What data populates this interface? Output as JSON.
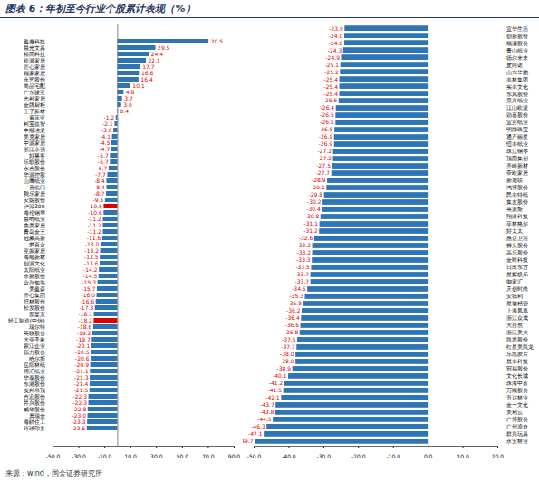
{
  "title": "图表 6：年初至今行业个股累计表现（%）",
  "source": "来源：wind，国金证券研究所",
  "chart_data": [
    {
      "type": "bar",
      "orientation": "horizontal",
      "data_labels": true,
      "grid": false,
      "categories": [
        "盈趣科技",
        "晨光文具",
        "裕同科技",
        "欧派家居",
        "匠心家居",
        "顾家家居",
        "永艺股份",
        "尚品宅配",
        "广东骏亚",
        "志邦家居",
        "金牌厨柜",
        "王子新材",
        "索菲亚",
        "邦宝益智",
        "中顺洁柔",
        "美克家居",
        "中源家居",
        "浙江永强",
        "好莱客",
        "乐歌股份",
        "永吉股份",
        "华源控股",
        "山鹰纸业",
        "喜临门",
        "我乐家居",
        "安妮股份",
        "沪深300",
        "海伦钢琴",
        "晨鸣纸业",
        "曲美家居",
        "青岛金王",
        "冠豪高新",
        "梦百合",
        "亚振家居",
        "海顺新材",
        "创源文化",
        "太阳纸业",
        "永新股份",
        "合兴包装",
        "美盈森",
        "齐心集团",
        "恒林股份",
        "松发股份",
        "爱婴室",
        "轻工制造(中信)",
        "瑞尔特",
        "英联股份",
        "大亚圣象",
        "紫江企业",
        "德力股份",
        "哈尔斯",
        "岳阳林纸",
        "博汇纸业",
        "华泰股份",
        "东港股份",
        "友邦吊顶",
        "吉宏股份",
        "昇兴股份",
        "威华股份",
        "奥瑞金",
        "海鸥住工",
        "环球印务"
      ],
      "values": [
        70.5,
        29.5,
        24.4,
        22.1,
        17.7,
        16.8,
        16.4,
        10.1,
        4.8,
        3.7,
        3.0,
        0.4,
        -1.2,
        -2.1,
        -3.0,
        -4.1,
        -4.5,
        -4.7,
        -5.7,
        -5.7,
        -6.7,
        -7.7,
        -8.4,
        -8.4,
        -8.7,
        -9.5,
        -10.5,
        -10.6,
        -11.2,
        -11.2,
        -11.2,
        -11.6,
        -13.0,
        -13.2,
        -13.5,
        -13.6,
        -14.2,
        -14.5,
        -15.3,
        -15.7,
        -16.0,
        -16.6,
        -17.3,
        -18.1,
        -18.2,
        -18.6,
        -19.2,
        -19.7,
        -20.1,
        -20.5,
        -20.6,
        -20.9,
        -21.1,
        -21.3,
        -21.4,
        -21.5,
        -22.3,
        -22.3,
        -22.8,
        -23.0,
        -23.3,
        -23.6
      ],
      "value_labels": [
        "70.5",
        "29.5",
        "24.4",
        "22.1",
        "17.7",
        "16.8",
        "16.4",
        "10.1",
        "4.8",
        "3.7",
        "3.0",
        "0.4",
        "-1.2",
        "-2.1",
        "-3.0",
        "-4.1",
        "-4.5",
        "-4.7",
        "-5.7",
        "-5.7",
        "-6.7",
        "-7.7",
        "-8.4",
        "-8.4",
        "-8.7",
        "-9.5",
        "-10.5",
        "-10.6",
        "-11.2",
        "-11.2",
        "-11.2",
        "-11.6",
        "-13.0",
        "-13.2",
        "-13.5",
        "-13.6",
        "-14.2",
        "-14.5",
        "-15.3",
        "-15.7",
        "-16.0",
        "-16.6",
        "-17.3",
        "-18.1",
        "-18.2",
        "-18.6",
        "-19.2",
        "-19.7",
        "-20.1",
        "-20.5",
        "-20.6",
        "-20.9",
        "-21.1",
        "-21.3",
        "-21.4",
        "-21.5",
        "-22.3",
        "-22.3",
        "-22.8",
        "-23.0",
        "-23.3",
        "-23.6"
      ],
      "colors": [
        "#2e75b6",
        "#2e75b6",
        "#2e75b6",
        "#2e75b6",
        "#2e75b6",
        "#2e75b6",
        "#2e75b6",
        "#2e75b6",
        "#2e75b6",
        "#2e75b6",
        "#2e75b6",
        "#2e75b6",
        "#2e75b6",
        "#2e75b6",
        "#2e75b6",
        "#2e75b6",
        "#2e75b6",
        "#2e75b6",
        "#2e75b6",
        "#2e75b6",
        "#2e75b6",
        "#2e75b6",
        "#2e75b6",
        "#2e75b6",
        "#2e75b6",
        "#2e75b6",
        "#e00000",
        "#2e75b6",
        "#2e75b6",
        "#2e75b6",
        "#2e75b6",
        "#2e75b6",
        "#2e75b6",
        "#2e75b6",
        "#2e75b6",
        "#2e75b6",
        "#2e75b6",
        "#2e75b6",
        "#2e75b6",
        "#2e75b6",
        "#2e75b6",
        "#2e75b6",
        "#2e75b6",
        "#2e75b6",
        "#e00000",
        "#2e75b6",
        "#2e75b6",
        "#2e75b6",
        "#2e75b6",
        "#2e75b6",
        "#2e75b6",
        "#2e75b6",
        "#2e75b6",
        "#2e75b6",
        "#2e75b6",
        "#2e75b6",
        "#2e75b6",
        "#2e75b6",
        "#2e75b6",
        "#2e75b6",
        "#2e75b6",
        "#2e75b6"
      ],
      "xlim": [
        -50,
        90
      ],
      "xticks": [
        {
          "value": -50,
          "label": "-50.0"
        },
        {
          "value": -30,
          "label": "-30.0"
        },
        {
          "value": -10,
          "label": "-10.0"
        },
        {
          "value": 10,
          "label": "10.0"
        },
        {
          "value": 30,
          "label": "30.0"
        },
        {
          "value": 50,
          "label": "50.0"
        },
        {
          "value": 70,
          "label": "70.0"
        },
        {
          "value": 90,
          "label": "90.0"
        }
      ]
    },
    {
      "type": "bar",
      "orientation": "horizontal",
      "data_labels": true,
      "grid": false,
      "categories": [
        "宜华生活",
        "创新股份",
        "顺灏股份",
        "青山纸业",
        "德尔未来",
        "皮阿诺",
        "山东华鹏",
        "丰林集团",
        "实丰文化",
        "东风股份",
        "景兴纸业",
        "江山欧派",
        "劲嘉股份",
        "宜宾纸业",
        "明牌珠宝",
        "通产丽星",
        "恒丰纸业",
        "珠江钢琴",
        "顶固集创",
        "齐峰新材",
        "帝欧家居",
        "新通联",
        "鸿博股份",
        "民丰特纸",
        "集友股份",
        "英派斯",
        "翔港科技",
        "菲林格尔",
        "好太太",
        "惠达卫浴",
        "狮头股份",
        "高乐股份",
        "金时科技",
        "日出东方",
        "星辉娱乐",
        "御家汇",
        "天创时尚",
        "安德利",
        "星徽精密",
        "上海凤凰",
        "浙江众成",
        "大自然",
        "浙江美大",
        "凯恩股份",
        "红星美凯龙",
        "乐凯胶片",
        "晨丰科技",
        "冠福股份",
        "文化长城",
        "珠海中富",
        "万顺股份",
        "升达林业",
        "金一文化",
        "美利云",
        "广博股份",
        "广州浪奇",
        "群兴玩具",
        "永安林业"
      ],
      "values": [
        -23.9,
        -24.0,
        -24.0,
        -24.3,
        -24.9,
        -25.1,
        -25.2,
        -25.4,
        -25.4,
        -25.4,
        -25.6,
        -26.4,
        -26.5,
        -26.5,
        -26.8,
        -26.9,
        -26.9,
        -27.2,
        -27.2,
        -27.5,
        -27.7,
        -28.9,
        -29.1,
        -29.8,
        -30.2,
        -30.4,
        -30.8,
        -31.1,
        -31.2,
        -32.6,
        -33.2,
        -33.2,
        -33.3,
        -33.5,
        -33.7,
        -33.7,
        -34.6,
        -35.3,
        -35.8,
        -36.2,
        -36.4,
        -36.6,
        -36.8,
        -37.5,
        -37.7,
        -38.0,
        -38.0,
        -38.9,
        -40.1,
        -41.2,
        -41.5,
        -42.1,
        -43.7,
        -43.8,
        -44.5,
        -46.3,
        -47.1,
        -49.7
      ],
      "value_labels": [
        "-23.9",
        "-24.0",
        "-24.0",
        "-24.3",
        "-24.9",
        "-25.1",
        "-25.2",
        "-25.4",
        "-25.4",
        "-25.4",
        "-25.6",
        "-26.4",
        "-26.5",
        "-26.5",
        "-26.8",
        "-26.9",
        "-26.9",
        "-27.2",
        "-27.2",
        "-27.5",
        "-27.7",
        "-28.9",
        "-29.1",
        "-29.8",
        "-30.2",
        "-30.4",
        "-30.8",
        "-31.1",
        "-31.2",
        "-32.6",
        "-33.2",
        "-33.2",
        "-33.3",
        "-33.5",
        "-33.7",
        "-33.7",
        "-34.6",
        "-35.3",
        "-35.8",
        "-36.2",
        "-36.4",
        "-36.6",
        "-36.8",
        "-37.5",
        "-37.7",
        "-38.0",
        "-38.0",
        "-38.9",
        "-40.1",
        "-41.2",
        "-41.5",
        "-42.1",
        "-43.7",
        "-43.8",
        "-44.5",
        "-46.3",
        "-47.1",
        "-49.7"
      ],
      "color": "#2e75b6",
      "xlim": [
        -50,
        20
      ],
      "xticks": [
        {
          "value": -50,
          "label": "-50.0"
        },
        {
          "value": -40,
          "label": "-40.0"
        },
        {
          "value": -30,
          "label": "-30.0"
        },
        {
          "value": -20,
          "label": "-20.0"
        },
        {
          "value": -10,
          "label": "-10.0"
        },
        {
          "value": 0,
          "label": "0.0"
        },
        {
          "value": 10,
          "label": "10.0"
        },
        {
          "value": 20,
          "label": "20.0"
        }
      ]
    }
  ]
}
